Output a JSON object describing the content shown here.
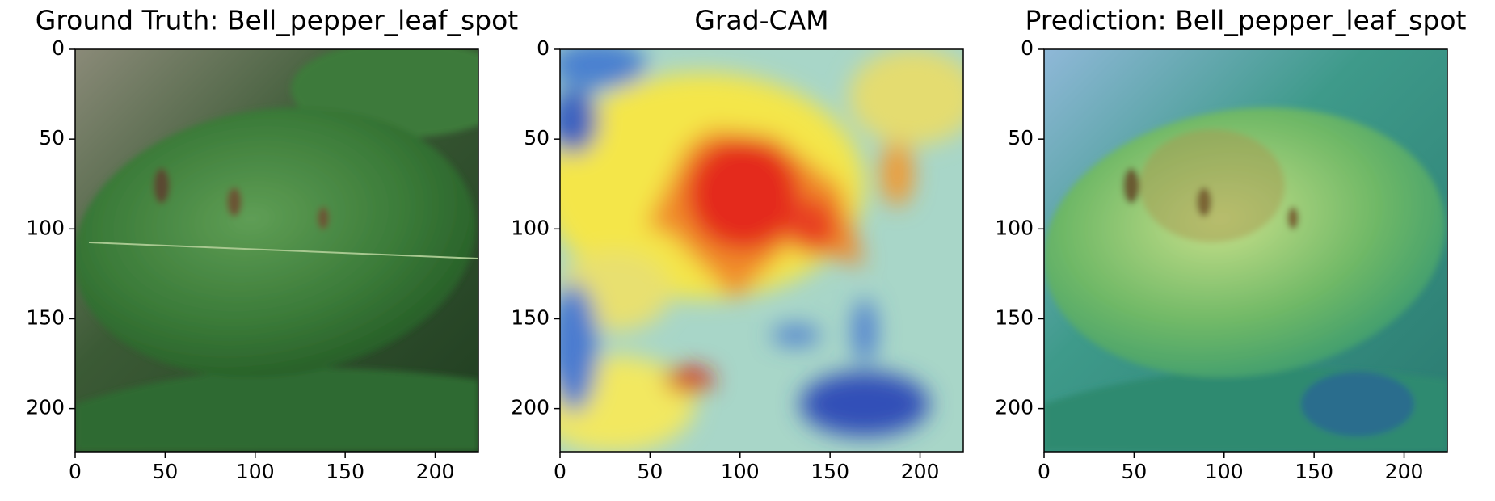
{
  "chart_data": [
    {
      "type": "image",
      "title": "Ground Truth: Bell_pepper_leaf_spot",
      "xlim": [
        0,
        224
      ],
      "ylim": [
        224,
        0
      ],
      "xticks": [
        0,
        50,
        100,
        150,
        200
      ],
      "yticks": [
        0,
        50,
        100,
        150,
        200
      ]
    },
    {
      "type": "image",
      "title": "Grad-CAM",
      "xlim": [
        0,
        224
      ],
      "ylim": [
        224,
        0
      ],
      "xticks": [
        0,
        50,
        100,
        150,
        200
      ],
      "yticks": [
        0,
        50,
        100,
        150,
        200
      ]
    },
    {
      "type": "image",
      "title": "Prediction: Bell_pepper_leaf_spot",
      "xlim": [
        0,
        224
      ],
      "ylim": [
        224,
        0
      ],
      "xticks": [
        0,
        50,
        100,
        150,
        200
      ],
      "yticks": [
        0,
        50,
        100,
        150,
        200
      ]
    }
  ]
}
